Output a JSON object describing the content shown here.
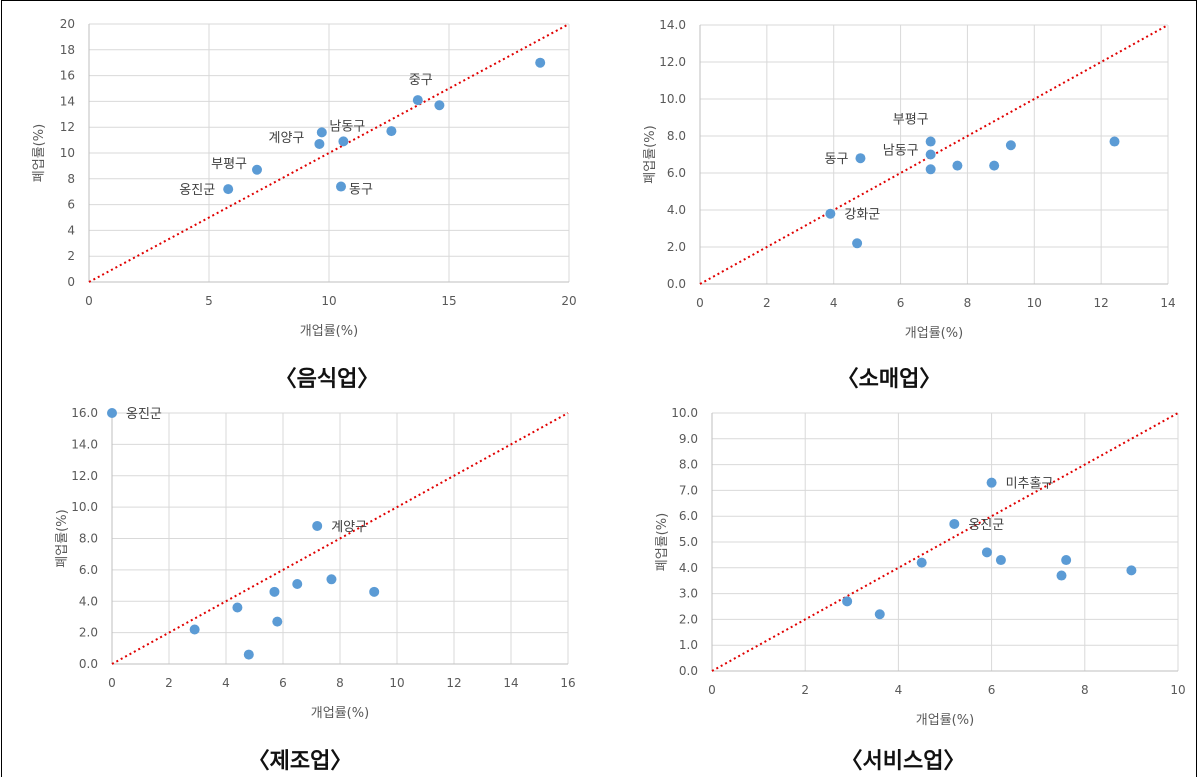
{
  "chart_data": [
    {
      "id": "food",
      "type": "scatter",
      "title": "〈음식업〉",
      "xlabel": "개업률(%)",
      "ylabel": "폐업률(%)",
      "xlim": [
        0,
        20
      ],
      "ylim": [
        0,
        20
      ],
      "x_ticks": [
        0,
        5,
        10,
        15,
        20
      ],
      "y_ticks": [
        0,
        2,
        4,
        6,
        8,
        10,
        12,
        14,
        16,
        18,
        20
      ],
      "tick_decimals": 0,
      "grid": true,
      "reference_line": "y=x",
      "points": [
        {
          "x": 5.8,
          "y": 7.2,
          "label": "옹진군"
        },
        {
          "x": 7.0,
          "y": 8.7,
          "label": "부평구"
        },
        {
          "x": 9.6,
          "y": 10.7,
          "label": "계양구"
        },
        {
          "x": 9.7,
          "y": 11.6,
          "label": ""
        },
        {
          "x": 10.6,
          "y": 10.9,
          "label": "남동구"
        },
        {
          "x": 10.5,
          "y": 7.4,
          "label": "동구"
        },
        {
          "x": 12.6,
          "y": 11.7,
          "label": ""
        },
        {
          "x": 13.7,
          "y": 14.1,
          "label": "중구"
        },
        {
          "x": 14.6,
          "y": 13.7,
          "label": ""
        },
        {
          "x": 18.8,
          "y": 17.0,
          "label": ""
        }
      ]
    },
    {
      "id": "retail",
      "type": "scatter",
      "title": "〈소매업〉",
      "xlabel": "개업률(%)",
      "ylabel": "폐업률(%)",
      "xlim": [
        0,
        14
      ],
      "ylim": [
        0,
        14
      ],
      "x_ticks": [
        0,
        2,
        4,
        6,
        8,
        10,
        12,
        14
      ],
      "y_ticks": [
        0,
        2,
        4,
        6,
        8,
        10,
        12,
        14
      ],
      "tick_decimals": 1,
      "x_tick_decimals": 0,
      "grid": true,
      "reference_line": "y=x",
      "points": [
        {
          "x": 3.9,
          "y": 3.8,
          "label": "강화군"
        },
        {
          "x": 4.7,
          "y": 2.2,
          "label": ""
        },
        {
          "x": 4.8,
          "y": 6.8,
          "label": "동구"
        },
        {
          "x": 6.9,
          "y": 7.0,
          "label": "남동구"
        },
        {
          "x": 6.9,
          "y": 7.7,
          "label": "부평구"
        },
        {
          "x": 6.9,
          "y": 6.2,
          "label": ""
        },
        {
          "x": 7.7,
          "y": 6.4,
          "label": ""
        },
        {
          "x": 8.8,
          "y": 6.4,
          "label": ""
        },
        {
          "x": 9.3,
          "y": 7.5,
          "label": ""
        },
        {
          "x": 12.4,
          "y": 7.7,
          "label": ""
        }
      ]
    },
    {
      "id": "manufacturing",
      "type": "scatter",
      "title": "〈제조업〉",
      "xlabel": "개업률(%)",
      "ylabel": "폐업률(%)",
      "xlim": [
        0,
        16
      ],
      "ylim": [
        0,
        16
      ],
      "x_ticks": [
        0,
        2,
        4,
        6,
        8,
        10,
        12,
        14,
        16
      ],
      "y_ticks": [
        0,
        2,
        4,
        6,
        8,
        10,
        12,
        14,
        16
      ],
      "tick_decimals": 1,
      "x_tick_decimals": 0,
      "grid": true,
      "reference_line": "y=x",
      "points": [
        {
          "x": 0.0,
          "y": 16.0,
          "label": "옹진군"
        },
        {
          "x": 2.9,
          "y": 2.2,
          "label": ""
        },
        {
          "x": 4.4,
          "y": 3.6,
          "label": ""
        },
        {
          "x": 4.8,
          "y": 0.6,
          "label": ""
        },
        {
          "x": 5.7,
          "y": 4.6,
          "label": ""
        },
        {
          "x": 5.8,
          "y": 2.7,
          "label": ""
        },
        {
          "x": 6.5,
          "y": 5.1,
          "label": ""
        },
        {
          "x": 7.2,
          "y": 8.8,
          "label": "계양구"
        },
        {
          "x": 7.7,
          "y": 5.4,
          "label": ""
        },
        {
          "x": 9.2,
          "y": 4.6,
          "label": ""
        }
      ]
    },
    {
      "id": "service",
      "type": "scatter",
      "title": "〈서비스업〉",
      "xlabel": "개업률(%)",
      "ylabel": "폐업률(%)",
      "xlim": [
        0,
        10
      ],
      "ylim": [
        0,
        10
      ],
      "x_ticks": [
        0,
        2,
        4,
        6,
        8,
        10
      ],
      "y_ticks": [
        0,
        1,
        2,
        3,
        4,
        5,
        6,
        7,
        8,
        9,
        10
      ],
      "tick_decimals": 1,
      "x_tick_decimals": 0,
      "grid": true,
      "reference_line": "y=x",
      "points": [
        {
          "x": 2.9,
          "y": 2.7,
          "label": ""
        },
        {
          "x": 3.6,
          "y": 2.2,
          "label": ""
        },
        {
          "x": 4.5,
          "y": 4.2,
          "label": ""
        },
        {
          "x": 5.2,
          "y": 5.7,
          "label": "옹진군"
        },
        {
          "x": 5.9,
          "y": 4.6,
          "label": ""
        },
        {
          "x": 6.0,
          "y": 7.3,
          "label": "미추홀구"
        },
        {
          "x": 6.2,
          "y": 4.3,
          "label": ""
        },
        {
          "x": 7.5,
          "y": 3.7,
          "label": ""
        },
        {
          "x": 7.6,
          "y": 4.3,
          "label": ""
        },
        {
          "x": 9.0,
          "y": 3.9,
          "label": ""
        }
      ]
    }
  ]
}
